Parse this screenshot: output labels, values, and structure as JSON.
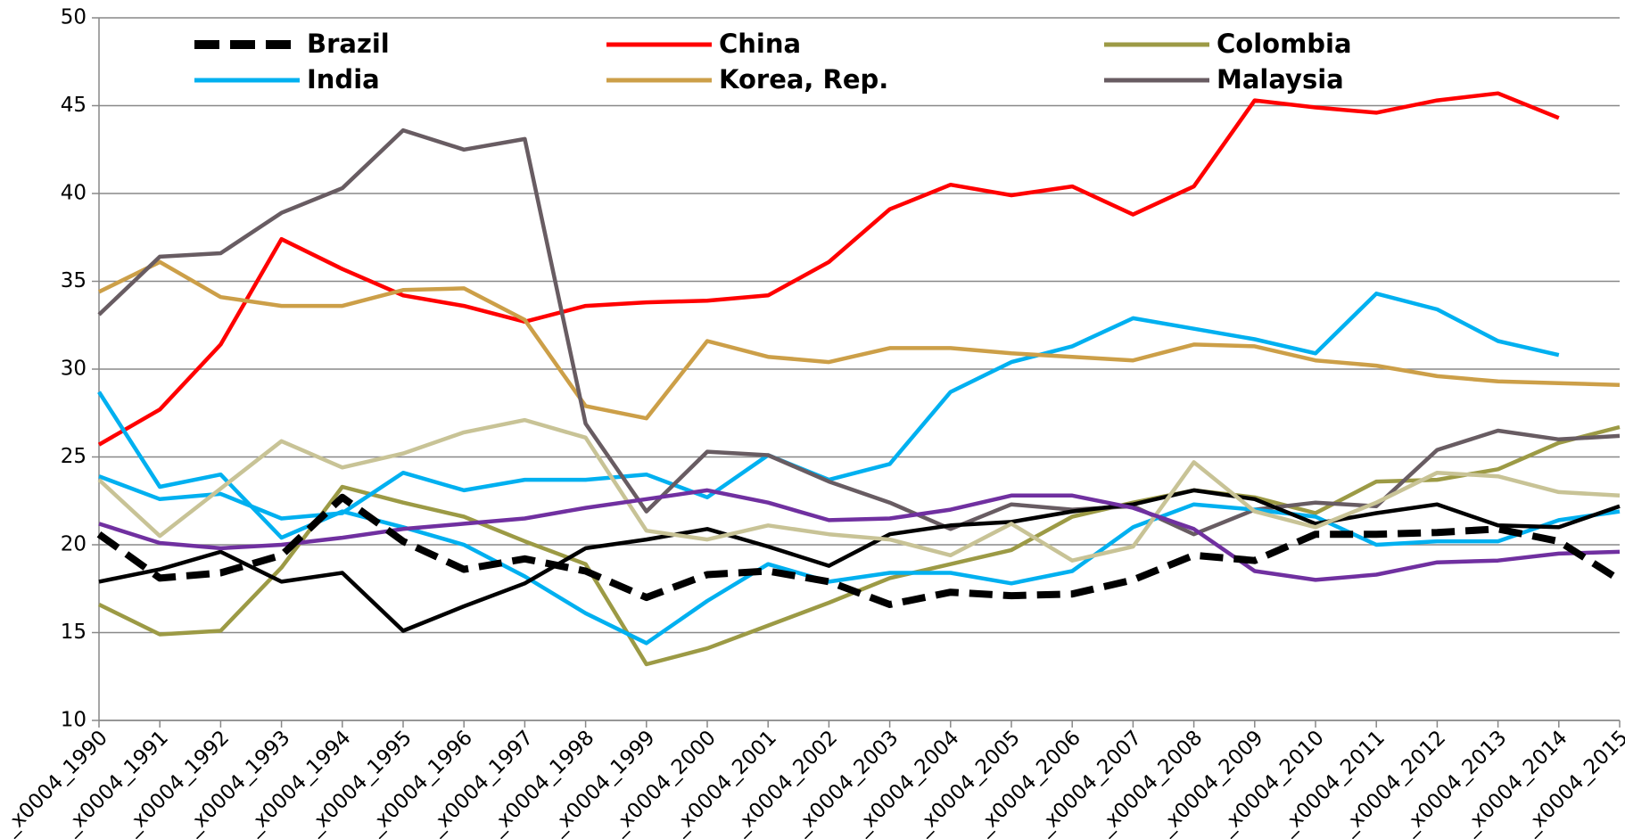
{
  "chart_data": {
    "type": "line",
    "categories": [
      "_x0004_1990",
      "_x0004_1991",
      "_x0004_1992",
      "_x0004_1993",
      "_x0004_1994",
      "_x0004_1995",
      "_x0004_1996",
      "_x0004_1997",
      "_x0004_1998",
      "_x0004_1999",
      "_x0004_2000",
      "_x0004_2001",
      "_x0004_2002",
      "_x0004_2003",
      "_x0004_2004",
      "_x0004_2005",
      "_x0004_2006",
      "_x0004_2007",
      "_x0004_2008",
      "_x0004_2009",
      "_x0004_2010",
      "_x0004_2011",
      "_x0004_2012",
      "_x0004_2013",
      "_x0004_2014",
      "_x0004_2015"
    ],
    "series": [
      {
        "name": "Brazil",
        "color": "#000000",
        "dashed": true,
        "values": [
          20.6,
          18.1,
          18.4,
          19.4,
          22.7,
          20.2,
          18.6,
          19.2,
          18.5,
          17.0,
          18.3,
          18.5,
          17.9,
          16.6,
          17.3,
          17.1,
          17.2,
          18.0,
          19.4,
          19.1,
          20.6,
          20.6,
          20.7,
          20.9,
          20.2,
          18.0
        ]
      },
      {
        "name": "China",
        "color": "#ff0000",
        "values": [
          25.7,
          27.7,
          31.4,
          37.4,
          35.7,
          34.2,
          33.6,
          32.7,
          33.6,
          33.8,
          33.9,
          34.2,
          36.1,
          39.1,
          40.5,
          39.9,
          40.4,
          38.8,
          40.4,
          45.3,
          44.9,
          44.6,
          45.3,
          45.7,
          44.3,
          null
        ]
      },
      {
        "name": "Colombia",
        "color": "#9c9a45",
        "values": [
          16.6,
          14.9,
          15.1,
          18.7,
          23.3,
          22.4,
          21.6,
          20.2,
          18.9,
          13.2,
          14.1,
          15.4,
          16.7,
          18.1,
          18.9,
          19.7,
          21.6,
          22.4,
          23.1,
          22.7,
          21.8,
          23.6,
          23.7,
          24.3,
          25.8,
          26.7
        ]
      },
      {
        "name": "India",
        "color": "#00b0f0",
        "values": [
          23.9,
          22.6,
          22.9,
          21.5,
          21.8,
          24.1,
          23.1,
          23.7,
          23.7,
          24.0,
          22.7,
          25.1,
          23.7,
          24.6,
          28.7,
          30.4,
          31.3,
          32.9,
          32.3,
          31.7,
          30.9,
          34.3,
          33.4,
          31.6,
          30.8,
          null
        ]
      },
      {
        "name": "Korea, Rep.",
        "color": "#cc9f48",
        "values": [
          34.4,
          36.1,
          34.1,
          33.6,
          33.6,
          34.5,
          34.6,
          32.8,
          27.9,
          27.2,
          31.6,
          30.7,
          30.4,
          31.2,
          31.2,
          30.9,
          30.7,
          30.5,
          31.4,
          31.3,
          30.5,
          30.2,
          29.6,
          29.3,
          29.2,
          29.1
        ]
      },
      {
        "name": "Malaysia",
        "color": "#685c62",
        "values": [
          33.1,
          36.4,
          36.6,
          38.9,
          40.3,
          43.6,
          42.5,
          43.1,
          26.9,
          21.9,
          25.3,
          25.1,
          23.6,
          22.4,
          20.9,
          22.3,
          22.0,
          22.2,
          20.6,
          22.0,
          22.4,
          22.2,
          25.4,
          26.5,
          26.0,
          26.2
        ]
      },
      {
        "color": "#00b0f0",
        "values": [
          28.7,
          23.3,
          24.0,
          20.4,
          21.9,
          21.0,
          20.0,
          18.2,
          16.1,
          14.4,
          16.8,
          18.9,
          17.9,
          18.4,
          18.4,
          17.8,
          18.5,
          21.0,
          22.3,
          22.0,
          21.6,
          20.0,
          20.2,
          20.2,
          21.4,
          21.9
        ]
      },
      {
        "color": "#000000",
        "values": [
          17.9,
          18.6,
          19.6,
          17.9,
          18.4,
          15.1,
          16.5,
          17.8,
          19.8,
          20.3,
          20.9,
          19.9,
          18.8,
          20.6,
          21.1,
          21.3,
          21.9,
          22.3,
          23.1,
          22.6,
          21.2,
          21.8,
          22.3,
          21.1,
          21.0,
          22.2
        ]
      },
      {
        "color": "#c8c396",
        "values": [
          23.7,
          20.5,
          23.2,
          25.9,
          24.4,
          25.2,
          26.4,
          27.1,
          26.1,
          20.8,
          20.3,
          21.1,
          20.6,
          20.3,
          19.4,
          21.2,
          19.1,
          19.9,
          24.7,
          21.9,
          21.0,
          22.4,
          24.1,
          23.9,
          23.0,
          22.8
        ]
      },
      {
        "color": "#7030a0",
        "values": [
          21.2,
          20.1,
          19.8,
          20.0,
          20.4,
          20.9,
          21.2,
          21.5,
          22.1,
          22.6,
          23.1,
          22.4,
          21.4,
          21.5,
          22.0,
          22.8,
          22.8,
          22.1,
          20.9,
          18.5,
          18.0,
          18.3,
          19.0,
          19.1,
          19.5,
          19.6
        ]
      }
    ],
    "ylim": [
      10,
      50
    ],
    "yticks": [
      10,
      15,
      20,
      25,
      30,
      35,
      40,
      45,
      50
    ],
    "grid": true,
    "legend": "top"
  }
}
